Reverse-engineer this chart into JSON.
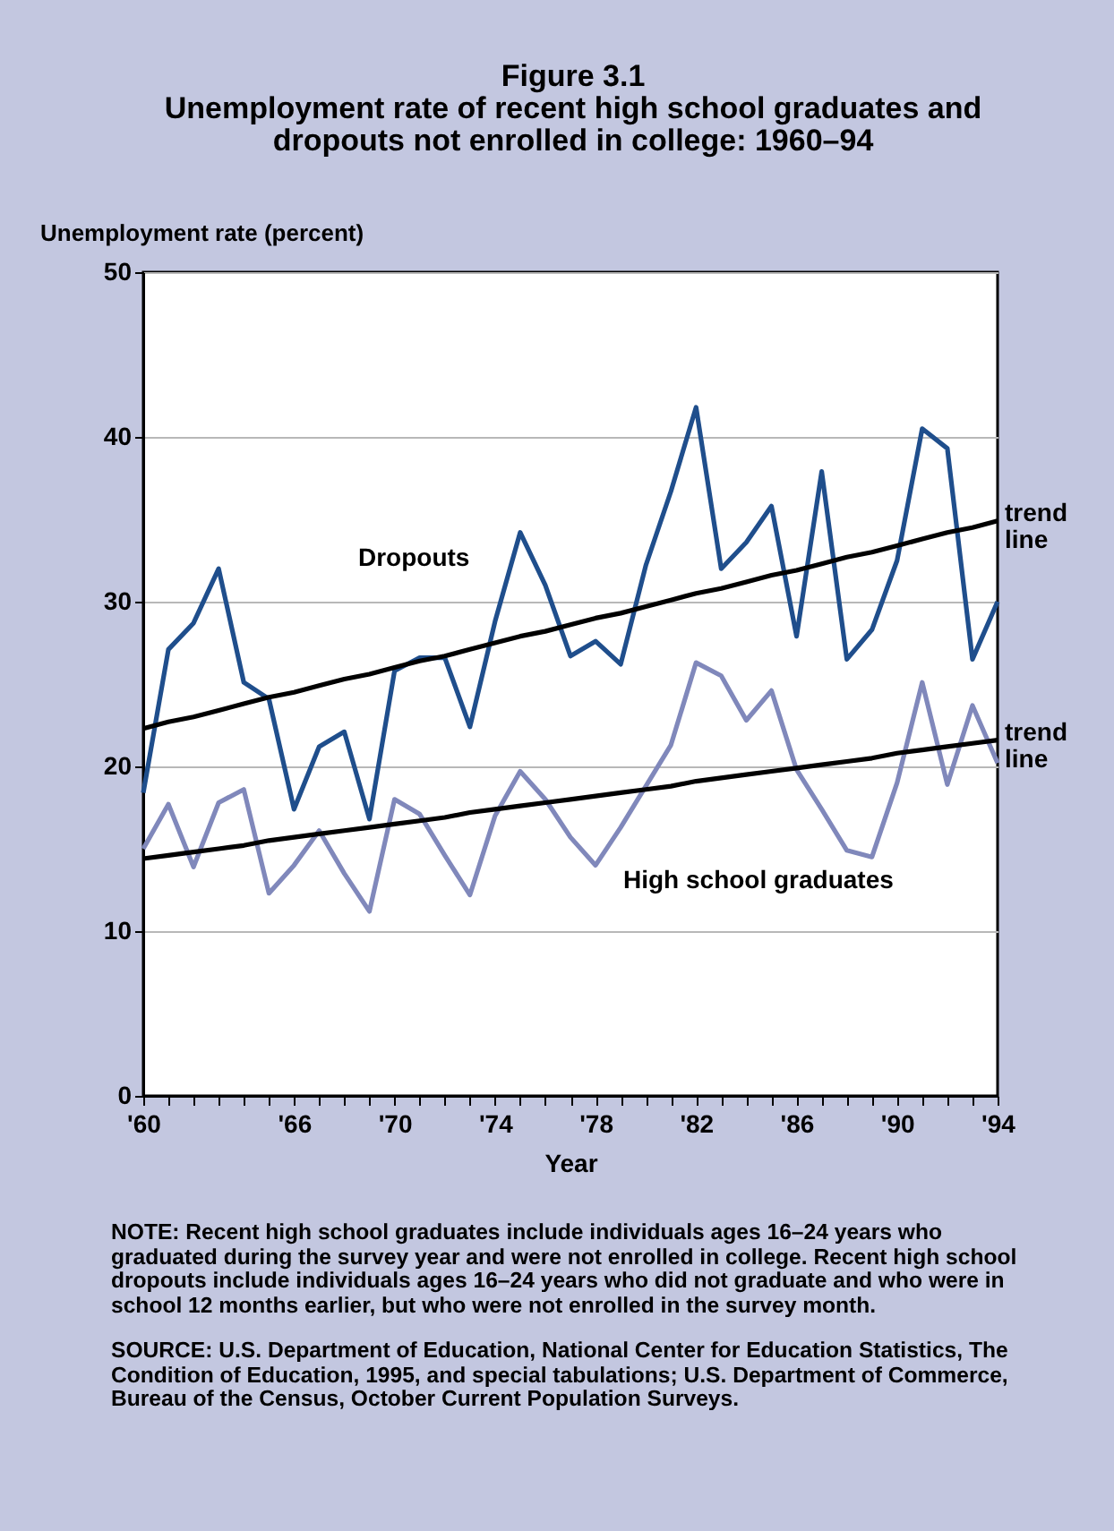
{
  "chart_data": {
    "type": "line",
    "title": "Figure 3.1",
    "subtitle": "Unemployment rate of recent high school graduates and dropouts not enrolled in college: 1960–94",
    "xlabel": "Year",
    "ylabel": "Unemployment rate (percent)",
    "x": [
      1960,
      1961,
      1962,
      1963,
      1964,
      1965,
      1966,
      1967,
      1968,
      1969,
      1970,
      1971,
      1972,
      1973,
      1974,
      1975,
      1976,
      1977,
      1978,
      1979,
      1980,
      1981,
      1982,
      1983,
      1984,
      1985,
      1986,
      1987,
      1988,
      1989,
      1990,
      1991,
      1992,
      1993,
      1994
    ],
    "series": [
      {
        "name": "Dropouts",
        "color": "#1f4e8c",
        "values": [
          18.4,
          27.1,
          28.7,
          32.0,
          25.1,
          24.1,
          17.4,
          21.2,
          22.1,
          16.8,
          25.8,
          26.6,
          26.6,
          22.4,
          28.8,
          34.2,
          31.0,
          26.7,
          27.6,
          26.2,
          32.2,
          36.7,
          41.8,
          32.0,
          33.6,
          35.8,
          27.9,
          37.9,
          26.5,
          28.3,
          32.5,
          40.5,
          39.3,
          26.5,
          30.0
        ]
      },
      {
        "name": "High school graduates",
        "color": "#8088bb",
        "values": [
          15.0,
          17.7,
          13.9,
          17.8,
          18.6,
          12.3,
          14.0,
          16.1,
          13.5,
          11.2,
          18.0,
          17.1,
          14.6,
          12.2,
          17.0,
          19.7,
          18.0,
          15.7,
          14.0,
          16.3,
          18.8,
          21.3,
          26.3,
          25.5,
          22.8,
          24.6,
          19.8,
          17.4,
          14.9,
          14.5,
          19.0,
          25.1,
          18.9,
          23.7,
          20.2
        ]
      },
      {
        "name": "trend line",
        "color": "#000000",
        "values": [
          22.3,
          22.7,
          23.0,
          23.4,
          23.8,
          24.2,
          24.5,
          24.9,
          25.3,
          25.6,
          26.0,
          26.4,
          26.7,
          27.1,
          27.5,
          27.9,
          28.2,
          28.6,
          29.0,
          29.3,
          29.7,
          30.1,
          30.5,
          30.8,
          31.2,
          31.6,
          31.9,
          32.3,
          32.7,
          33.0,
          33.4,
          33.8,
          34.2,
          34.5,
          34.9
        ]
      },
      {
        "name": "trend line",
        "color": "#000000",
        "values": [
          14.4,
          14.6,
          14.8,
          15.0,
          15.2,
          15.5,
          15.7,
          15.9,
          16.1,
          16.3,
          16.5,
          16.7,
          16.9,
          17.2,
          17.4,
          17.6,
          17.8,
          18.0,
          18.2,
          18.4,
          18.6,
          18.8,
          19.1,
          19.3,
          19.5,
          19.7,
          19.9,
          20.1,
          20.3,
          20.5,
          20.8,
          21.0,
          21.2,
          21.4,
          21.6
        ]
      }
    ],
    "xlim": [
      1960,
      1994
    ],
    "xticks": [
      {
        "value": 1960,
        "label": "'60"
      },
      {
        "value": 1961,
        "label": null
      },
      {
        "value": 1962,
        "label": null
      },
      {
        "value": 1963,
        "label": null
      },
      {
        "value": 1964,
        "label": null
      },
      {
        "value": 1965,
        "label": null
      },
      {
        "value": 1966,
        "label": "'66"
      },
      {
        "value": 1967,
        "label": null
      },
      {
        "value": 1968,
        "label": null
      },
      {
        "value": 1969,
        "label": null
      },
      {
        "value": 1970,
        "label": "'70"
      },
      {
        "value": 1971,
        "label": null
      },
      {
        "value": 1972,
        "label": null
      },
      {
        "value": 1973,
        "label": null
      },
      {
        "value": 1974,
        "label": "'74"
      },
      {
        "value": 1975,
        "label": null
      },
      {
        "value": 1976,
        "label": null
      },
      {
        "value": 1977,
        "label": null
      },
      {
        "value": 1978,
        "label": "'78"
      },
      {
        "value": 1979,
        "label": null
      },
      {
        "value": 1980,
        "label": null
      },
      {
        "value": 1981,
        "label": null
      },
      {
        "value": 1982,
        "label": "'82"
      },
      {
        "value": 1983,
        "label": null
      },
      {
        "value": 1984,
        "label": null
      },
      {
        "value": 1985,
        "label": null
      },
      {
        "value": 1986,
        "label": "'86"
      },
      {
        "value": 1987,
        "label": null
      },
      {
        "value": 1988,
        "label": null
      },
      {
        "value": 1989,
        "label": null
      },
      {
        "value": 1990,
        "label": "'90"
      },
      {
        "value": 1991,
        "label": null
      },
      {
        "value": 1992,
        "label": null
      },
      {
        "value": 1993,
        "label": null
      },
      {
        "value": 1994,
        "label": "'94"
      }
    ],
    "ylim": [
      0,
      50
    ],
    "yticks": [
      0,
      10,
      20,
      30,
      40,
      50
    ],
    "grid": "y",
    "legend": false,
    "marker": "none",
    "line_style": "solid",
    "annotations": [
      "NOTE: Recent high school graduates include individuals ages 16–24 years who graduated during the survey year and were not enrolled in college. Recent high school dropouts include individuals ages 16–24 years who did not graduate and who were in school 12 months earlier, but who were not enrolled in the survey month.",
      "SOURCE: U.S. Department of Education, National Center for Education Statistics, The Condition of Education, 1995, and special tabulations; U.S. Department of Commerce, Bureau of the Census, October Current Population Surveys."
    ]
  }
}
